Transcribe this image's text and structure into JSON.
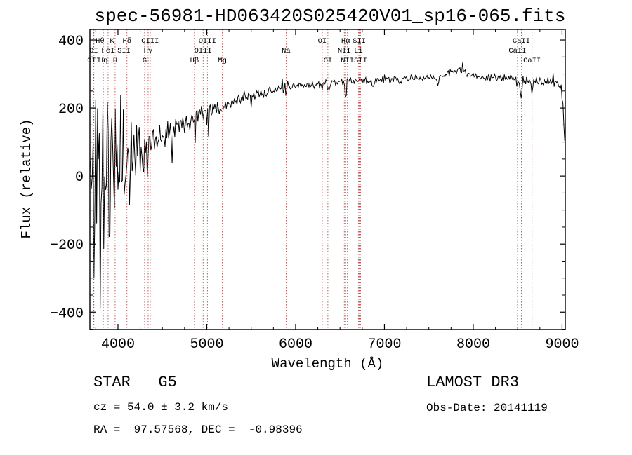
{
  "annotations": {
    "class_label": "STAR   G5",
    "survey": "LAMOST DR3",
    "cz": "cz = 54.0 ± 3.2 km/s",
    "obs_date": "Obs-Date: 20141119",
    "ra_dec": "RA =  97.57568, DEC =  -0.98396"
  },
  "chart_data": {
    "type": "line",
    "title": "spec-56981-HD063420S025420V01_sp16-065.fits",
    "xlabel": "Wavelength (Å)",
    "ylabel": "Flux (relative)",
    "xlim": [
      3684,
      9036
    ],
    "ylim": [
      -451,
      431
    ],
    "xticks": [
      4000,
      5000,
      6000,
      7000,
      8000,
      9000
    ],
    "yticks": [
      -400,
      -200,
      0,
      200,
      400
    ],
    "x_minor_step": 250,
    "y_minor_step": 50,
    "grid": false,
    "legend": "none",
    "line_color": "#000000",
    "marker_line_color": "#b24c4c",
    "marker_label_color": "#1c1c1c",
    "noise_seed": 11,
    "sample_step": 10,
    "spectrum_start": 3690,
    "continuum": [
      [
        3690,
        -25
      ],
      [
        3780,
        -8
      ],
      [
        3860,
        8
      ],
      [
        3940,
        22
      ],
      [
        4000,
        35
      ],
      [
        4080,
        50
      ],
      [
        4160,
        63
      ],
      [
        4240,
        76
      ],
      [
        4320,
        90
      ],
      [
        4400,
        105
      ],
      [
        4480,
        120
      ],
      [
        4560,
        135
      ],
      [
        4640,
        147
      ],
      [
        4720,
        157
      ],
      [
        4800,
        168
      ],
      [
        4900,
        180
      ],
      [
        5000,
        194
      ],
      [
        5100,
        204
      ],
      [
        5200,
        212
      ],
      [
        5300,
        220
      ],
      [
        5400,
        228
      ],
      [
        5500,
        235
      ],
      [
        5600,
        242
      ],
      [
        5700,
        248
      ],
      [
        5800,
        254
      ],
      [
        5900,
        258
      ],
      [
        6000,
        263
      ],
      [
        6100,
        267
      ],
      [
        6200,
        270
      ],
      [
        6300,
        272
      ],
      [
        6400,
        274
      ],
      [
        6500,
        276
      ],
      [
        6600,
        278
      ],
      [
        6800,
        281
      ],
      [
        7000,
        284
      ],
      [
        7200,
        286
      ],
      [
        7400,
        288
      ],
      [
        7550,
        290
      ],
      [
        7650,
        295
      ],
      [
        7750,
        306
      ],
      [
        7820,
        312
      ],
      [
        7900,
        306
      ],
      [
        8000,
        296
      ],
      [
        8100,
        291
      ],
      [
        8200,
        289
      ],
      [
        8350,
        287
      ],
      [
        8500,
        285
      ],
      [
        8650,
        281
      ],
      [
        8800,
        277
      ],
      [
        8920,
        272
      ],
      [
        8990,
        262
      ],
      [
        9010,
        210
      ],
      [
        9025,
        120
      ],
      [
        9036,
        80
      ]
    ],
    "noise_profile": [
      [
        3690,
        360
      ],
      [
        3740,
        330
      ],
      [
        3790,
        300
      ],
      [
        3840,
        265
      ],
      [
        3890,
        230
      ],
      [
        3940,
        195
      ],
      [
        3990,
        160
      ],
      [
        4040,
        130
      ],
      [
        4090,
        105
      ],
      [
        4140,
        88
      ],
      [
        4200,
        72
      ],
      [
        4280,
        58
      ],
      [
        4360,
        48
      ],
      [
        4440,
        40
      ],
      [
        4520,
        34
      ],
      [
        4620,
        29
      ],
      [
        4750,
        24
      ],
      [
        4900,
        20
      ],
      [
        5100,
        16
      ],
      [
        5300,
        14
      ],
      [
        5600,
        11
      ],
      [
        6000,
        9
      ],
      [
        6500,
        8
      ],
      [
        7000,
        7
      ],
      [
        7600,
        7
      ],
      [
        8200,
        8
      ],
      [
        8700,
        9
      ],
      [
        9036,
        10
      ]
    ],
    "absorption_lines": [
      {
        "wavelength": 4300,
        "depth": 15,
        "sigma": 12
      },
      {
        "wavelength": 4861,
        "depth": 18,
        "sigma": 12
      },
      {
        "wavelength": 5175,
        "depth": 15,
        "sigma": 18
      },
      {
        "wavelength": 5893,
        "depth": 20,
        "sigma": 10
      },
      {
        "wavelength": 6300,
        "depth": 22,
        "sigma": 6
      },
      {
        "wavelength": 6363,
        "depth": 18,
        "sigma": 6
      },
      {
        "wavelength": 6563,
        "depth": 40,
        "sigma": 8
      },
      {
        "wavelength": 6870,
        "depth": 25,
        "sigma": 10
      },
      {
        "wavelength": 7180,
        "depth": 15,
        "sigma": 12
      },
      {
        "wavelength": 7600,
        "depth": 22,
        "sigma": 10
      },
      {
        "wavelength": 8498,
        "depth": 40,
        "sigma": 7
      },
      {
        "wavelength": 8542,
        "depth": 50,
        "sigma": 7
      },
      {
        "wavelength": 8662,
        "depth": 45,
        "sigma": 7
      }
    ],
    "line_markers": [
      {
        "label": "Hθ",
        "wavelength": 3798,
        "row": 0
      },
      {
        "label": "K",
        "wavelength": 3933,
        "row": 0
      },
      {
        "label": "Hδ",
        "wavelength": 4101,
        "row": 0
      },
      {
        "label": "OIII",
        "wavelength": 4363,
        "row": 0
      },
      {
        "label": "OIII",
        "wavelength": 5007,
        "row": 0
      },
      {
        "label": "OI",
        "wavelength": 6300,
        "row": 0
      },
      {
        "label": "Hα",
        "wavelength": 6563,
        "row": 0
      },
      {
        "label": "SII",
        "wavelength": 6716,
        "row": 0
      },
      {
        "label": "CaII",
        "wavelength": 8542,
        "row": 0
      },
      {
        "label": "OI",
        "wavelength": 3727,
        "row": 1
      },
      {
        "label": "HeI",
        "wavelength": 3889,
        "row": 1
      },
      {
        "label": "SII",
        "wavelength": 4068,
        "row": 1
      },
      {
        "label": "Hγ",
        "wavelength": 4340,
        "row": 1
      },
      {
        "label": "OIII",
        "wavelength": 4959,
        "row": 1
      },
      {
        "label": "Na",
        "wavelength": 5893,
        "row": 1
      },
      {
        "label": "NII",
        "wavelength": 6548,
        "row": 1
      },
      {
        "label": "Li",
        "wavelength": 6707,
        "row": 1
      },
      {
        "label": "CaII",
        "wavelength": 8498,
        "row": 1
      },
      {
        "label": "OII",
        "wavelength": 3729,
        "row": 2
      },
      {
        "label": "Hη",
        "wavelength": 3835,
        "row": 2
      },
      {
        "label": "H",
        "wavelength": 3968,
        "row": 2
      },
      {
        "label": "G",
        "wavelength": 4300,
        "row": 2
      },
      {
        "label": "Hβ",
        "wavelength": 4861,
        "row": 2
      },
      {
        "label": "Mg",
        "wavelength": 5175,
        "row": 2
      },
      {
        "label": "OI",
        "wavelength": 6363,
        "row": 2
      },
      {
        "label": "NII",
        "wavelength": 6583,
        "row": 2
      },
      {
        "label": "SII",
        "wavelength": 6731,
        "row": 2
      },
      {
        "label": "CaII",
        "wavelength": 8662,
        "row": 2
      }
    ]
  }
}
